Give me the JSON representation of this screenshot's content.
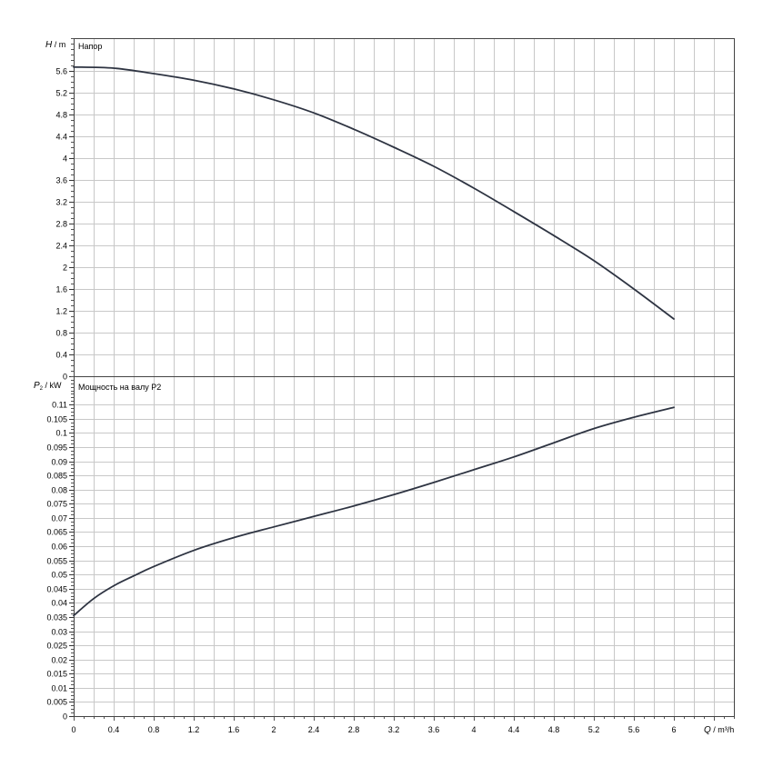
{
  "chart_data": [
    {
      "type": "line",
      "title": "Напор",
      "ylabel_italic": "H",
      "ylabel_unit": " / m",
      "xlim": [
        0,
        6.6
      ],
      "ylim": [
        0,
        6.2
      ],
      "yticks": [
        0,
        0.4,
        0.8,
        1.2,
        1.6,
        2,
        2.4,
        2.8,
        3.2,
        3.6,
        4,
        4.4,
        4.8,
        5.2,
        5.6
      ],
      "ytick_labels": [
        "0",
        "0.4",
        "0.8",
        "1.2",
        "1.6",
        "2",
        "2.4",
        "2.8",
        "3.2",
        "3.6",
        "4",
        "4.4",
        "4.8",
        "5.2",
        "5.6"
      ],
      "grid": true,
      "series": [
        {
          "color": "#2e3442",
          "x": [
            0,
            0.4,
            0.8,
            1.2,
            1.6,
            2.0,
            2.4,
            2.8,
            3.2,
            3.6,
            4.0,
            4.4,
            4.8,
            5.2,
            5.6,
            6.0
          ],
          "y": [
            5.67,
            5.65,
            5.55,
            5.43,
            5.27,
            5.07,
            4.83,
            4.53,
            4.2,
            3.85,
            3.45,
            3.02,
            2.58,
            2.12,
            1.6,
            1.05
          ]
        }
      ]
    },
    {
      "type": "line",
      "title": "Мощность на валу P2",
      "ylabel_italic": "P",
      "ylabel_sub": "2",
      "ylabel_unit": " / kW",
      "xlim": [
        0,
        6.6
      ],
      "ylim": [
        0,
        0.12
      ],
      "yticks": [
        0,
        0.005,
        0.01,
        0.015,
        0.02,
        0.025,
        0.03,
        0.035,
        0.04,
        0.045,
        0.05,
        0.055,
        0.06,
        0.065,
        0.07,
        0.075,
        0.08,
        0.085,
        0.09,
        0.095,
        0.1,
        0.105,
        0.11
      ],
      "ytick_labels": [
        "0",
        "0.005",
        "0.01",
        "0.015",
        "0.02",
        "0.025",
        "0.03",
        "0.035",
        "0.04",
        "0.045",
        "0.05",
        "0.055",
        "0.06",
        "0.065",
        "0.07",
        "0.075",
        "0.08",
        "0.085",
        "0.09",
        "0.095",
        "0.1",
        "0.105",
        "0.11"
      ],
      "xticks": [
        0,
        0.4,
        0.8,
        1.2,
        1.6,
        2,
        2.4,
        2.8,
        3.2,
        3.6,
        4,
        4.4,
        4.8,
        5.2,
        5.6,
        6
      ],
      "xtick_labels": [
        "0",
        "0.4",
        "0.8",
        "1.2",
        "1.6",
        "2",
        "2.4",
        "2.8",
        "3.2",
        "3.6",
        "4",
        "4.4",
        "4.8",
        "5.2",
        "5.6",
        "6"
      ],
      "xlabel_italic": "Q",
      "xlabel_unit": " / m³/h",
      "grid": true,
      "series": [
        {
          "color": "#2e3442",
          "x": [
            0,
            0.2,
            0.4,
            0.6,
            0.8,
            1.2,
            1.6,
            2.0,
            2.4,
            2.8,
            3.2,
            3.6,
            4.0,
            4.4,
            4.8,
            5.2,
            5.6,
            6.0
          ],
          "y": [
            0.0355,
            0.0415,
            0.046,
            0.0495,
            0.0528,
            0.0585,
            0.063,
            0.0668,
            0.0705,
            0.0742,
            0.0782,
            0.0825,
            0.087,
            0.0915,
            0.0965,
            0.1015,
            0.1055,
            0.109
          ]
        }
      ]
    }
  ]
}
